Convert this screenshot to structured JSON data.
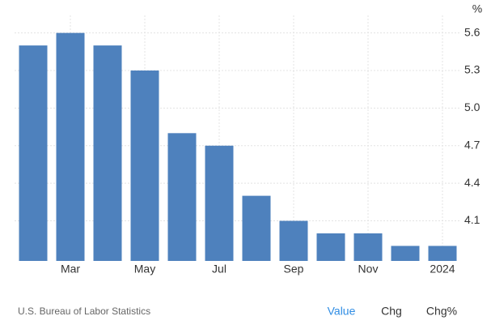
{
  "chart_data": {
    "type": "bar",
    "unit": "%",
    "categories": [
      null,
      "Mar",
      null,
      "May",
      null,
      "Jul",
      null,
      "Sep",
      null,
      "Nov",
      null,
      "2024"
    ],
    "values": [
      5.5,
      5.6,
      5.5,
      5.3,
      4.8,
      4.7,
      4.3,
      4.1,
      4.0,
      4.0,
      3.9,
      3.9
    ],
    "color": "#4e81bd",
    "ylim": [
      3.78,
      5.74
    ],
    "yticks": [
      4.1,
      4.4,
      4.7,
      {
        "value": 5,
        "label": "5.0"
      },
      5.3,
      5.6
    ],
    "grid": true,
    "source": "U.S. Bureau of Labor Statistics",
    "buttons": [
      "Value",
      "Chg",
      "Chg%"
    ]
  }
}
